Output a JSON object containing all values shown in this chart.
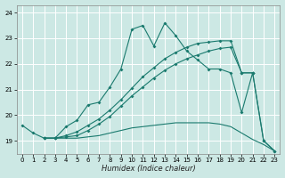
{
  "xlabel": "Humidex (Indice chaleur)",
  "bg_color": "#cce8e4",
  "grid_color": "#ffffff",
  "line_color": "#1a7a6e",
  "xlim": [
    -0.5,
    23.5
  ],
  "ylim": [
    18.5,
    24.3
  ],
  "yticks": [
    19,
    20,
    21,
    22,
    23,
    24
  ],
  "xticks": [
    0,
    1,
    2,
    3,
    4,
    5,
    6,
    7,
    8,
    9,
    10,
    11,
    12,
    13,
    14,
    15,
    16,
    17,
    18,
    19,
    20,
    21,
    22,
    23
  ],
  "line1_x": [
    0,
    1,
    2,
    3,
    4,
    5,
    6,
    7,
    8,
    9,
    10,
    11,
    12,
    13,
    14,
    15,
    16,
    17,
    18,
    19,
    20,
    21,
    22,
    23
  ],
  "line1_y": [
    19.6,
    19.3,
    19.1,
    19.1,
    19.55,
    19.8,
    20.4,
    20.5,
    21.1,
    21.8,
    23.35,
    23.5,
    22.7,
    23.6,
    23.1,
    22.5,
    22.15,
    21.8,
    21.8,
    21.65,
    20.1,
    21.65,
    19.0,
    18.6
  ],
  "line2_x": [
    2,
    3,
    4,
    5,
    6,
    7,
    8,
    9,
    10,
    11,
    12,
    13,
    14,
    15,
    16,
    17,
    18,
    19,
    20,
    21
  ],
  "line2_y": [
    19.1,
    19.1,
    19.2,
    19.35,
    19.6,
    19.85,
    20.2,
    20.6,
    21.05,
    21.5,
    21.85,
    22.2,
    22.45,
    22.65,
    22.8,
    22.85,
    22.9,
    22.9,
    21.65,
    21.65
  ],
  "line3_x": [
    2,
    3,
    4,
    5,
    6,
    7,
    8,
    9,
    10,
    11,
    12,
    13,
    14,
    15,
    16,
    17,
    18,
    19,
    20,
    21,
    22,
    23
  ],
  "line3_y": [
    19.1,
    19.1,
    19.1,
    19.1,
    19.15,
    19.2,
    19.3,
    19.4,
    19.5,
    19.55,
    19.6,
    19.65,
    19.7,
    19.7,
    19.7,
    19.7,
    19.65,
    19.55,
    19.3,
    19.05,
    18.85,
    18.6
  ],
  "line4_x": [
    2,
    3,
    4,
    5,
    6,
    7,
    8,
    9,
    10,
    11,
    12,
    13,
    14,
    15,
    16,
    17,
    18,
    19,
    20,
    21,
    22,
    23
  ],
  "line4_y": [
    19.1,
    19.1,
    19.15,
    19.2,
    19.4,
    19.65,
    19.95,
    20.35,
    20.75,
    21.1,
    21.45,
    21.75,
    22.0,
    22.2,
    22.35,
    22.5,
    22.6,
    22.65,
    21.65,
    21.65,
    19.0,
    18.6
  ]
}
